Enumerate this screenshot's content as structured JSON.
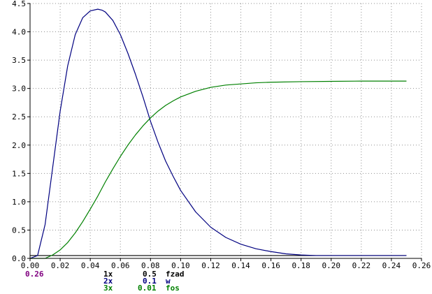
{
  "chart_data": {
    "type": "line",
    "xlim": [
      0,
      0.26
    ],
    "ylim": [
      0,
      4.5
    ],
    "grid": true,
    "x_ticks": [
      0.0,
      0.02,
      0.04,
      0.06,
      0.08,
      0.1,
      0.12,
      0.14,
      0.16,
      0.18,
      0.2,
      0.22,
      0.24,
      0.26
    ],
    "x_tick_labels": [
      "0.00",
      "0.02",
      "0.04",
      "0.06",
      "0.08",
      "0.10",
      "0.12",
      "0.14",
      "0.16",
      "0.18",
      "0.20",
      "0.22",
      "0.24",
      "0.26"
    ],
    "y_ticks": [
      0.0,
      0.5,
      1.0,
      1.5,
      2.0,
      2.5,
      3.0,
      3.5,
      4.0,
      4.5
    ],
    "y_tick_labels": [
      "0.0",
      "0.5",
      "1.0",
      "1.5",
      "2.0",
      "2.5",
      "3.0",
      "3.5",
      "4.0",
      "4.5"
    ],
    "cursor_value": "0.26",
    "series": [
      {
        "name": "fzad",
        "index": "1x",
        "scale": "0.5",
        "color": "#000000",
        "x": [
          0,
          0.25
        ],
        "y": [
          0.05,
          0.05
        ]
      },
      {
        "name": "w",
        "index": "2x",
        "scale": "0.1",
        "color": "#000080",
        "x": [
          0,
          0.005,
          0.01,
          0.015,
          0.02,
          0.025,
          0.03,
          0.035,
          0.04,
          0.045,
          0.048,
          0.05,
          0.055,
          0.06,
          0.065,
          0.07,
          0.075,
          0.08,
          0.085,
          0.09,
          0.095,
          0.1,
          0.11,
          0.12,
          0.13,
          0.14,
          0.15,
          0.16,
          0.17,
          0.18,
          0.19,
          0.2,
          0.22,
          0.25
        ],
        "y": [
          0,
          0.05,
          0.6,
          1.6,
          2.6,
          3.4,
          3.95,
          4.25,
          4.37,
          4.4,
          4.38,
          4.35,
          4.2,
          3.95,
          3.62,
          3.25,
          2.85,
          2.42,
          2.05,
          1.72,
          1.45,
          1.2,
          0.82,
          0.55,
          0.37,
          0.25,
          0.17,
          0.12,
          0.08,
          0.06,
          0.05,
          0.05,
          0.05,
          0.05
        ]
      },
      {
        "name": "fos",
        "index": "3x",
        "scale": "0.01",
        "color": "#008000",
        "x": [
          0,
          0.01,
          0.015,
          0.02,
          0.025,
          0.03,
          0.035,
          0.04,
          0.045,
          0.05,
          0.055,
          0.06,
          0.065,
          0.07,
          0.075,
          0.08,
          0.085,
          0.09,
          0.095,
          0.1,
          0.11,
          0.12,
          0.13,
          0.14,
          0.15,
          0.16,
          0.18,
          0.2,
          0.22,
          0.25
        ],
        "y": [
          0,
          0.0,
          0.06,
          0.15,
          0.28,
          0.45,
          0.65,
          0.87,
          1.1,
          1.35,
          1.58,
          1.8,
          2.0,
          2.18,
          2.34,
          2.48,
          2.6,
          2.7,
          2.78,
          2.85,
          2.95,
          3.02,
          3.06,
          3.08,
          3.1,
          3.11,
          3.12,
          3.125,
          3.13,
          3.13
        ]
      }
    ]
  }
}
